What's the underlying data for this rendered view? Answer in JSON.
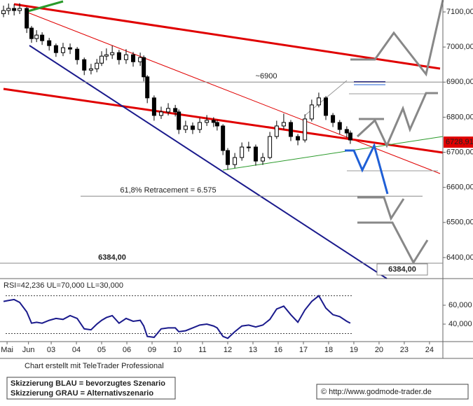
{
  "chart_data": [
    {
      "type": "candlestick",
      "xlim": [
        -0.28,
        17.28
      ],
      "xticks": [
        {
          "value": 0,
          "label": "Mai"
        },
        {
          "value": 0.85,
          "label": "Jun"
        },
        {
          "value": 1.75,
          "label": "03"
        },
        {
          "value": 2.75,
          "label": "04"
        },
        {
          "value": 3.75,
          "label": "05"
        },
        {
          "value": 4.75,
          "label": "06"
        },
        {
          "value": 5.75,
          "label": "09"
        },
        {
          "value": 6.75,
          "label": "10"
        },
        {
          "value": 7.75,
          "label": "11"
        },
        {
          "value": 8.75,
          "label": "12"
        },
        {
          "value": 9.75,
          "label": "13"
        },
        {
          "value": 10.75,
          "label": "16"
        },
        {
          "value": 11.75,
          "label": "17"
        },
        {
          "value": 12.75,
          "label": "18"
        },
        {
          "value": 13.75,
          "label": "19"
        },
        {
          "value": 14.75,
          "label": "20"
        },
        {
          "value": 15.75,
          "label": "23"
        },
        {
          "value": 16.75,
          "label": "24"
        }
      ],
      "ylim": [
        6340,
        7134
      ],
      "yticks": [
        {
          "value": 7100,
          "label": "7100,00"
        },
        {
          "value": 7000,
          "label": "7000,00"
        },
        {
          "value": 6900,
          "label": "6900,00"
        },
        {
          "value": 6800,
          "label": "6800,00"
        },
        {
          "value": 6700,
          "label": "6700,00"
        },
        {
          "value": 6600,
          "label": "6600,00"
        },
        {
          "value": 6500,
          "label": "6500,00"
        },
        {
          "value": 6400,
          "label": "6400,00"
        }
      ],
      "x": [
        -0.14,
        0.06,
        0.28,
        0.5,
        0.78,
        0.97,
        1.17,
        1.39,
        1.67,
        1.94,
        2.22,
        2.5,
        2.78,
        3.06,
        3.33,
        3.56,
        3.75,
        3.94,
        4.17,
        4.44,
        4.72,
        5,
        5.28,
        5.42,
        5.56,
        5.83,
        6.11,
        6.39,
        6.67,
        6.81,
        7.08,
        7.36,
        7.64,
        7.92,
        8.19,
        8.33,
        8.56,
        8.75,
        9.03,
        9.31,
        9.58,
        9.86,
        10.14,
        10.42,
        10.69,
        10.97,
        11.25,
        11.53,
        11.81,
        12.08,
        12.36,
        12.64,
        12.92,
        13.19,
        13.47,
        13.61
      ],
      "open": [
        7095,
        7104,
        7110,
        7104,
        7110,
        7054,
        7024,
        7034,
        7018,
        7004,
        6984,
        6998,
        6994,
        6964,
        6934,
        6938,
        6954,
        6974,
        6978,
        6984,
        6964,
        6978,
        6958,
        6970,
        6915,
        6855,
        6805,
        6815,
        6825,
        6815,
        6765,
        6775,
        6765,
        6785,
        6791,
        6785,
        6775,
        6705,
        6665,
        6685,
        6715,
        6715,
        6675,
        6685,
        6745,
        6775,
        6785,
        6745,
        6735,
        6795,
        6835,
        6855,
        6805,
        6785,
        6765,
        6755
      ],
      "high": [
        7118,
        7124,
        7122,
        7125,
        7114,
        7060,
        7048,
        7042,
        7026,
        7010,
        7012,
        7010,
        7000,
        6970,
        6952,
        6966,
        6988,
        6996,
        7004,
        6992,
        6994,
        6986,
        6984,
        6976,
        6920,
        6862,
        6830,
        6840,
        6835,
        6822,
        6790,
        6785,
        6798,
        6806,
        6800,
        6792,
        6780,
        6712,
        6698,
        6728,
        6730,
        6722,
        6698,
        6758,
        6790,
        6810,
        6792,
        6752,
        6808,
        6850,
        6870,
        6860,
        6812,
        6792,
        6774,
        6762
      ],
      "low": [
        7085,
        7092,
        7090,
        7094,
        7040,
        7012,
        7014,
        7006,
        6990,
        6972,
        6974,
        6980,
        6950,
        6920,
        6922,
        6928,
        6946,
        6962,
        6966,
        6950,
        6952,
        6944,
        6946,
        6902,
        6840,
        6790,
        6795,
        6805,
        6802,
        6752,
        6755,
        6752,
        6755,
        6775,
        6772,
        6762,
        6692,
        6650,
        6655,
        6676,
        6702,
        6662,
        6664,
        6680,
        6738,
        6765,
        6732,
        6720,
        6728,
        6788,
        6828,
        6792,
        6772,
        6752,
        6742,
        6724
      ],
      "close": [
        7104,
        7110,
        7104,
        7110,
        7054,
        7024,
        7034,
        7018,
        7004,
        6984,
        6998,
        6994,
        6964,
        6934,
        6938,
        6954,
        6974,
        6978,
        6984,
        6964,
        6978,
        6958,
        6970,
        6915,
        6855,
        6805,
        6815,
        6825,
        6815,
        6765,
        6775,
        6765,
        6785,
        6791,
        6785,
        6775,
        6705,
        6665,
        6685,
        6715,
        6715,
        6675,
        6685,
        6745,
        6775,
        6785,
        6745,
        6735,
        6795,
        6835,
        6855,
        6805,
        6785,
        6765,
        6755,
        6735
      ],
      "levels": [
        {
          "value": 6900,
          "label": "~6900"
        },
        {
          "value": 6575,
          "label": "61,8% Retracement = 6.575"
        },
        {
          "value": 6384,
          "label": "6384,00"
        }
      ],
      "last_price": {
        "value": 6728.91,
        "label": "6728,91"
      }
    },
    {
      "type": "line",
      "title": "RSI=42,236 UL=70,000 LL=30,000",
      "ylim": [
        21.5,
        86.7
      ],
      "yticks": [
        {
          "value": 60,
          "label": "60,000"
        },
        {
          "value": 40,
          "label": "40,000"
        }
      ],
      "ul": 70,
      "ll": 30,
      "color": "#1a1a8c",
      "values": [
        64,
        65,
        66,
        63,
        53,
        41,
        42,
        41,
        44,
        46,
        45,
        49,
        46,
        35,
        34,
        40,
        44,
        47,
        49,
        41,
        46,
        43,
        44,
        38,
        27,
        26,
        35,
        36,
        36,
        32,
        33,
        36,
        39,
        40,
        38,
        36,
        27,
        25,
        32,
        38,
        39,
        37,
        39,
        45,
        56,
        59,
        50,
        42,
        55,
        64,
        70,
        57,
        50,
        48,
        43,
        41
      ]
    }
  ],
  "footer": {
    "credit": "Chart erstellt mit TeleTrader Professional",
    "legend_blue": "Skizzierung BLAU = bevorzugtes Szenario",
    "legend_grey": "Skizzierung GRAU = Alternativszenario",
    "source": "© http://www.godmode-trader.de"
  }
}
